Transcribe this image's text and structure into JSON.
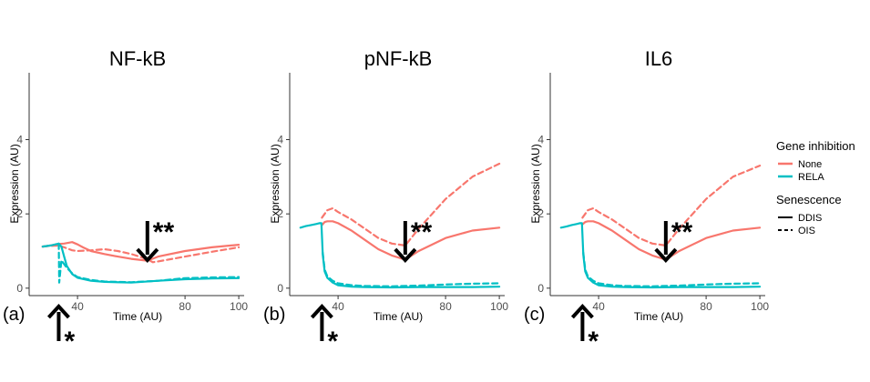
{
  "chart_data": [
    {
      "type": "line",
      "tag": "(a)",
      "title": "NF-kB",
      "xlabel": "Time (AU)",
      "ylabel": "Expression (AU)",
      "xlim": [
        22,
        102
      ],
      "ylim": [
        -0.2,
        5.8
      ],
      "xticks": [
        "40",
        "80",
        "100"
      ],
      "yticks": [
        "0",
        "2",
        "4"
      ],
      "xtick_values": [
        40,
        80,
        100
      ],
      "ytick_values": [
        0,
        2,
        4
      ],
      "series": [
        {
          "name": "None / DDIS",
          "color": "#F8766D",
          "dash": false,
          "x": [
            27,
            30,
            33,
            35,
            38,
            40,
            42,
            45,
            50,
            55,
            60,
            66,
            70,
            80,
            90,
            100
          ],
          "y": [
            1.12,
            1.15,
            1.19,
            1.2,
            1.24,
            1.18,
            1.1,
            1.0,
            0.92,
            0.85,
            0.79,
            0.74,
            0.85,
            1.0,
            1.1,
            1.17
          ]
        },
        {
          "name": "None / OIS",
          "color": "#F8766D",
          "dash": true,
          "x": [
            27,
            30,
            33,
            35,
            38,
            40,
            45,
            50,
            55,
            60,
            66,
            68,
            70,
            80,
            90,
            100
          ],
          "y": [
            1.12,
            1.14,
            1.15,
            1.1,
            1.02,
            1.0,
            1.02,
            1.05,
            1.0,
            0.92,
            0.78,
            0.7,
            0.72,
            0.85,
            0.98,
            1.1
          ]
        },
        {
          "name": "RELA / DDIS",
          "color": "#00BFC4",
          "dash": false,
          "x": [
            27,
            30,
            33,
            34,
            35,
            36,
            38,
            40,
            45,
            50,
            60,
            70,
            80,
            90,
            100
          ],
          "y": [
            1.12,
            1.15,
            1.2,
            1.12,
            0.85,
            0.6,
            0.38,
            0.28,
            0.2,
            0.17,
            0.15,
            0.2,
            0.24,
            0.26,
            0.27
          ]
        },
        {
          "name": "RELA / OIS",
          "color": "#00BFC4",
          "dash": true,
          "x": [
            33,
            33.2,
            34,
            36,
            38,
            40,
            45,
            50,
            60,
            70,
            80,
            90,
            100
          ],
          "y": [
            1.2,
            0.15,
            0.75,
            0.55,
            0.4,
            0.3,
            0.22,
            0.18,
            0.16,
            0.2,
            0.27,
            0.29,
            0.3
          ]
        }
      ],
      "annotations": [
        {
          "symbol": "*",
          "direction": "up",
          "x": 33
        },
        {
          "symbol": "**",
          "direction": "down",
          "x": 66
        }
      ]
    },
    {
      "type": "line",
      "tag": "(b)",
      "title": "pNF-kB",
      "xlabel": "Time (AU)",
      "ylabel": "Expression (AU)",
      "xlim": [
        22,
        102
      ],
      "ylim": [
        -0.2,
        5.8
      ],
      "xticks": [
        "40",
        "80",
        "100"
      ],
      "yticks": [
        "0",
        "2",
        "4"
      ],
      "xtick_values": [
        40,
        80,
        100
      ],
      "ytick_values": [
        0,
        2,
        4
      ],
      "series": [
        {
          "name": "None / DDIS",
          "color": "#F8766D",
          "dash": false,
          "x": [
            34,
            35,
            36,
            38,
            40,
            45,
            50,
            55,
            60,
            65,
            70,
            80,
            90,
            100
          ],
          "y": [
            1.7,
            1.78,
            1.8,
            1.8,
            1.75,
            1.55,
            1.3,
            1.05,
            0.88,
            0.77,
            1.0,
            1.35,
            1.55,
            1.63
          ]
        },
        {
          "name": "None / OIS",
          "color": "#F8766D",
          "dash": true,
          "x": [
            34,
            36,
            38,
            40,
            45,
            50,
            55,
            60,
            65,
            70,
            80,
            90,
            100
          ],
          "y": [
            1.9,
            2.1,
            2.15,
            2.05,
            1.85,
            1.6,
            1.35,
            1.2,
            1.15,
            1.6,
            2.4,
            3.0,
            3.35
          ]
        },
        {
          "name": "RELA / DDIS",
          "color": "#00BFC4",
          "dash": false,
          "x": [
            26,
            28,
            30,
            32,
            33,
            33.8,
            34.3,
            35,
            36,
            38,
            40,
            45,
            50,
            60,
            70,
            80,
            90,
            100
          ],
          "y": [
            1.63,
            1.67,
            1.7,
            1.73,
            1.75,
            1.75,
            0.9,
            0.45,
            0.28,
            0.15,
            0.08,
            0.04,
            0.03,
            0.02,
            0.03,
            0.03,
            0.03,
            0.04
          ]
        },
        {
          "name": "RELA / OIS",
          "color": "#00BFC4",
          "dash": true,
          "x": [
            34.3,
            35,
            36,
            38,
            40,
            45,
            50,
            60,
            70,
            80,
            90,
            100
          ],
          "y": [
            0.95,
            0.5,
            0.32,
            0.2,
            0.13,
            0.08,
            0.06,
            0.05,
            0.07,
            0.1,
            0.12,
            0.13
          ]
        }
      ],
      "annotations": [
        {
          "symbol": "*",
          "direction": "up",
          "x": 34
        },
        {
          "symbol": "**",
          "direction": "down",
          "x": 65
        }
      ]
    },
    {
      "type": "line",
      "tag": "(c)",
      "title": "IL6",
      "xlabel": "Time (AU)",
      "ylabel": "Expression (AU)",
      "xlim": [
        22,
        102
      ],
      "ylim": [
        -0.2,
        5.8
      ],
      "xticks": [
        "40",
        "80",
        "100"
      ],
      "yticks": [
        "0",
        "2",
        "4"
      ],
      "xtick_values": [
        40,
        80,
        100
      ],
      "ytick_values": [
        0,
        2,
        4
      ],
      "series": [
        {
          "name": "None / DDIS",
          "color": "#F8766D",
          "dash": false,
          "x": [
            34,
            35,
            36,
            38,
            40,
            45,
            50,
            55,
            60,
            65,
            70,
            80,
            90,
            100
          ],
          "y": [
            1.72,
            1.78,
            1.8,
            1.8,
            1.75,
            1.55,
            1.3,
            1.05,
            0.88,
            0.77,
            1.0,
            1.35,
            1.55,
            1.63
          ]
        },
        {
          "name": "None / OIS",
          "color": "#F8766D",
          "dash": true,
          "x": [
            34,
            36,
            38,
            40,
            45,
            50,
            55,
            60,
            65,
            70,
            80,
            90,
            100
          ],
          "y": [
            1.9,
            2.1,
            2.15,
            2.05,
            1.85,
            1.6,
            1.35,
            1.2,
            1.15,
            1.6,
            2.4,
            3.0,
            3.3
          ]
        },
        {
          "name": "RELA / DDIS",
          "color": "#00BFC4",
          "dash": false,
          "x": [
            26,
            28,
            30,
            32,
            33,
            33.8,
            34.3,
            35,
            36,
            38,
            40,
            45,
            50,
            60,
            70,
            80,
            90,
            100
          ],
          "y": [
            1.63,
            1.66,
            1.7,
            1.73,
            1.75,
            1.75,
            0.9,
            0.45,
            0.28,
            0.15,
            0.08,
            0.04,
            0.03,
            0.02,
            0.03,
            0.03,
            0.03,
            0.04
          ]
        },
        {
          "name": "RELA / OIS",
          "color": "#00BFC4",
          "dash": true,
          "x": [
            34.3,
            35,
            36,
            38,
            40,
            45,
            50,
            60,
            70,
            80,
            90,
            100
          ],
          "y": [
            0.95,
            0.5,
            0.32,
            0.2,
            0.13,
            0.08,
            0.06,
            0.05,
            0.07,
            0.1,
            0.12,
            0.13
          ]
        }
      ],
      "annotations": [
        {
          "symbol": "*",
          "direction": "up",
          "x": 34
        },
        {
          "symbol": "**",
          "direction": "down",
          "x": 65
        }
      ]
    }
  ],
  "legend": {
    "gene_inhibition": {
      "title": "Gene inhibition",
      "items": [
        {
          "label": "None",
          "color": "#F8766D"
        },
        {
          "label": "RELA",
          "color": "#00BFC4"
        }
      ]
    },
    "senescence": {
      "title": "Senescence",
      "items": [
        {
          "label": "DDIS",
          "dash": false
        },
        {
          "label": "OIS",
          "dash": true
        }
      ]
    }
  }
}
